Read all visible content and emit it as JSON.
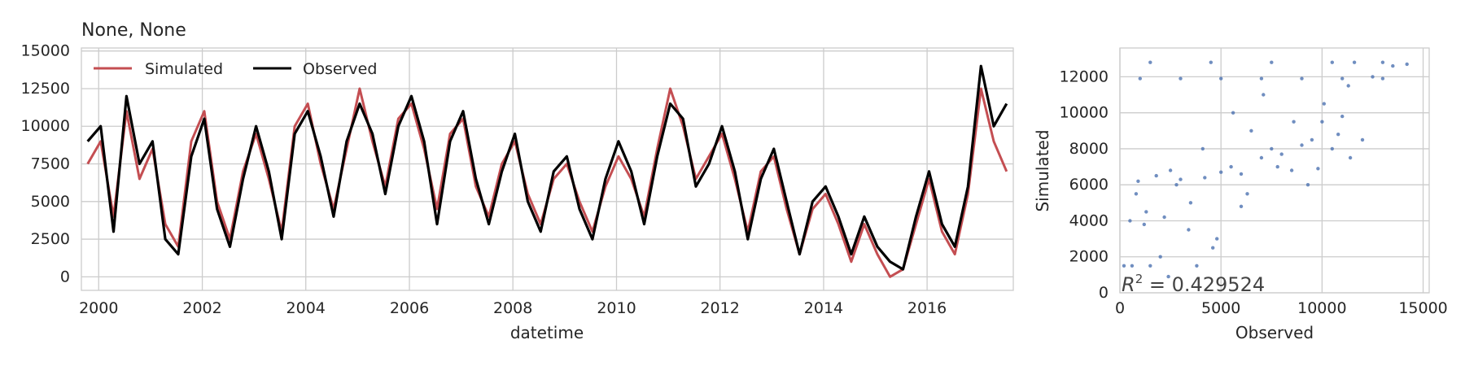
{
  "chart_data": [
    {
      "type": "line",
      "title": "None, None",
      "xlabel": "datetime",
      "ylabel": "",
      "x_range": [
        "1999-09-01",
        "2017-08-31"
      ],
      "xticks": [
        "2000",
        "2002",
        "2004",
        "2006",
        "2008",
        "2010",
        "2012",
        "2014",
        "2016"
      ],
      "ylim": [
        -900,
        15200
      ],
      "yticks": [
        0,
        2500,
        5000,
        7500,
        10000,
        12500,
        15000
      ],
      "grid": true,
      "legend": {
        "placement": "top-left",
        "entries": [
          "Simulated",
          "Observed"
        ]
      },
      "series": [
        {
          "name": "Simulated",
          "color": "#c44e52",
          "x": [
            "1999-10",
            "2000-01",
            "2000-04",
            "2000-07",
            "2000-10",
            "2001-01",
            "2001-04",
            "2001-07",
            "2001-10",
            "2002-01",
            "2002-04",
            "2002-07",
            "2002-10",
            "2003-01",
            "2003-04",
            "2003-07",
            "2003-10",
            "2004-01",
            "2004-04",
            "2004-07",
            "2004-10",
            "2005-01",
            "2005-04",
            "2005-07",
            "2005-10",
            "2006-01",
            "2006-04",
            "2006-07",
            "2006-10",
            "2007-01",
            "2007-04",
            "2007-07",
            "2007-10",
            "2008-01",
            "2008-04",
            "2008-07",
            "2008-10",
            "2009-01",
            "2009-04",
            "2009-07",
            "2009-10",
            "2010-01",
            "2010-04",
            "2010-07",
            "2010-10",
            "2011-01",
            "2011-04",
            "2011-07",
            "2011-10",
            "2012-01",
            "2012-04",
            "2012-07",
            "2012-10",
            "2013-01",
            "2013-04",
            "2013-07",
            "2013-10",
            "2014-01",
            "2014-04",
            "2014-07",
            "2014-10",
            "2015-01",
            "2015-04",
            "2015-07",
            "2015-10",
            "2016-01",
            "2016-04",
            "2016-07",
            "2016-10",
            "2017-01",
            "2017-04",
            "2017-07"
          ],
          "values": [
            7500,
            9000,
            4000,
            11000,
            6500,
            8500,
            3500,
            2000,
            9000,
            11000,
            5000,
            2500,
            7000,
            9500,
            6500,
            3000,
            10000,
            11500,
            7500,
            4500,
            8500,
            12500,
            9000,
            6000,
            10500,
            11500,
            8500,
            4500,
            9500,
            10500,
            6000,
            4000,
            7500,
            9000,
            5500,
            3500,
            6500,
            7500,
            5000,
            3000,
            6000,
            8000,
            6500,
            4000,
            8500,
            12500,
            10000,
            6500,
            8000,
            9500,
            6500,
            3000,
            7000,
            8000,
            4500,
            1500,
            4500,
            5500,
            3500,
            1000,
            3500,
            1500,
            0,
            500,
            3500,
            6500,
            3000,
            1500,
            5500,
            12500,
            9000,
            7000
          ]
        },
        {
          "name": "Observed",
          "color": "#000000",
          "x": [
            "1999-10",
            "2000-01",
            "2000-04",
            "2000-07",
            "2000-10",
            "2001-01",
            "2001-04",
            "2001-07",
            "2001-10",
            "2002-01",
            "2002-04",
            "2002-07",
            "2002-10",
            "2003-01",
            "2003-04",
            "2003-07",
            "2003-10",
            "2004-01",
            "2004-04",
            "2004-07",
            "2004-10",
            "2005-01",
            "2005-04",
            "2005-07",
            "2005-10",
            "2006-01",
            "2006-04",
            "2006-07",
            "2006-10",
            "2007-01",
            "2007-04",
            "2007-07",
            "2007-10",
            "2008-01",
            "2008-04",
            "2008-07",
            "2008-10",
            "2009-01",
            "2009-04",
            "2009-07",
            "2009-10",
            "2010-01",
            "2010-04",
            "2010-07",
            "2010-10",
            "2011-01",
            "2011-04",
            "2011-07",
            "2011-10",
            "2012-01",
            "2012-04",
            "2012-07",
            "2012-10",
            "2013-01",
            "2013-04",
            "2013-07",
            "2013-10",
            "2014-01",
            "2014-04",
            "2014-07",
            "2014-10",
            "2015-01",
            "2015-04",
            "2015-07",
            "2015-10",
            "2016-01",
            "2016-04",
            "2016-07",
            "2016-10",
            "2017-01",
            "2017-04",
            "2017-07"
          ],
          "values": [
            9000,
            10000,
            3000,
            12000,
            7500,
            9000,
            2500,
            1500,
            8000,
            10500,
            4500,
            2000,
            6500,
            10000,
            7000,
            2500,
            9500,
            11000,
            8000,
            4000,
            9000,
            11500,
            9500,
            5500,
            10000,
            12000,
            9000,
            3500,
            9000,
            11000,
            6500,
            3500,
            7000,
            9500,
            5000,
            3000,
            7000,
            8000,
            4500,
            2500,
            6500,
            9000,
            7000,
            3500,
            8000,
            11500,
            10500,
            6000,
            7500,
            10000,
            7000,
            2500,
            6500,
            8500,
            5000,
            1500,
            5000,
            6000,
            4000,
            1500,
            4000,
            2000,
            1000,
            500,
            4000,
            7000,
            3500,
            2000,
            6000,
            14000,
            10000,
            11500
          ]
        }
      ]
    },
    {
      "type": "scatter",
      "title": "",
      "xlabel": "Observed",
      "ylabel": "Simulated",
      "xlim": [
        0,
        15300
      ],
      "ylim": [
        0,
        13600
      ],
      "xticks": [
        0,
        5000,
        10000,
        15000
      ],
      "yticks": [
        0,
        2000,
        4000,
        6000,
        8000,
        10000,
        12000
      ],
      "grid": true,
      "color": "#4c72b0",
      "annotation": "R^2 = 0.429524",
      "annotation_prefix": "R",
      "annotation_sup": "2",
      "annotation_rest": " = 0.429524",
      "points_x": [
        200,
        500,
        900,
        1200,
        1500,
        1800,
        2200,
        2500,
        3000,
        3500,
        3800,
        4200,
        4600,
        5000,
        5500,
        6000,
        6500,
        7000,
        7500,
        8000,
        8500,
        9000,
        9500,
        10000,
        10500,
        11000,
        11300,
        11600,
        12000,
        12500,
        13000,
        13500,
        14200,
        600,
        1300,
        2000,
        2800,
        3400,
        4100,
        4800,
        5600,
        6300,
        7100,
        7800,
        8600,
        9300,
        10100,
        10800,
        11400,
        1000,
        3000,
        5000,
        7000,
        9000,
        11000,
        13000,
        1500,
        4500,
        7500,
        10500,
        800,
        2400,
        6000,
        9800
      ],
      "points_y": [
        1500,
        4000,
        6200,
        3800,
        1500,
        6500,
        4200,
        6800,
        6300,
        5000,
        1500,
        6400,
        2500,
        6700,
        7000,
        6600,
        9000,
        7500,
        8000,
        7700,
        6800,
        8200,
        8500,
        9500,
        8000,
        9800,
        11500,
        12800,
        8500,
        12000,
        12800,
        12600,
        12700,
        1500,
        4500,
        2000,
        6000,
        3500,
        8000,
        3000,
        10000,
        5500,
        11000,
        7000,
        9500,
        6000,
        10500,
        8800,
        7500,
        11900,
        11900,
        11900,
        11900,
        11900,
        11900,
        11900,
        12800,
        12800,
        12800,
        12800,
        5500,
        900,
        4800,
        6900
      ]
    }
  ]
}
